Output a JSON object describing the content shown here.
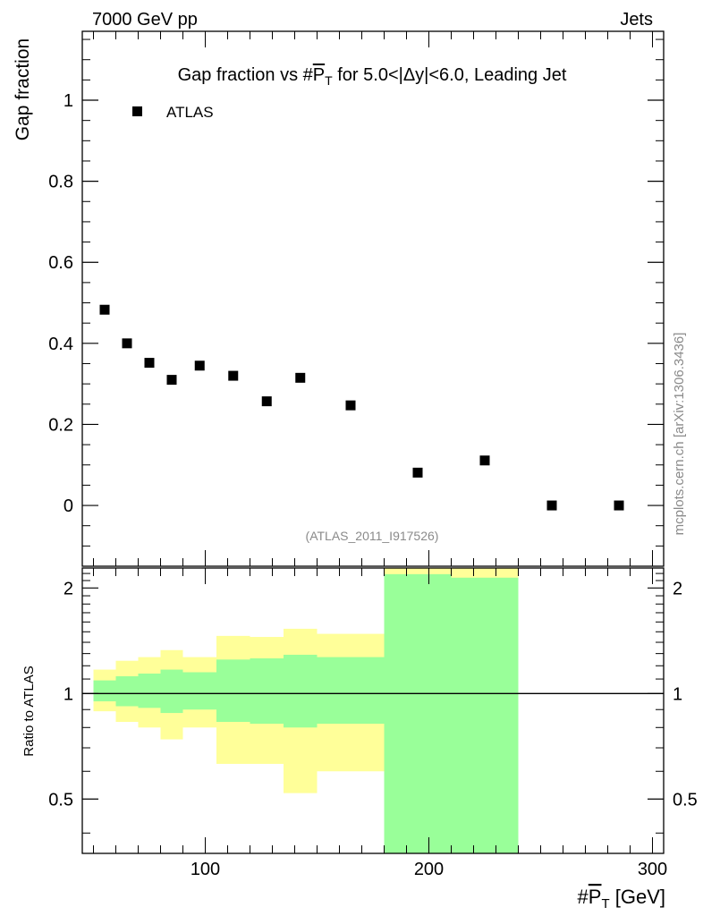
{
  "header": {
    "left": "7000 GeV pp",
    "right": "Jets"
  },
  "side_label": "mcplots.cern.ch [arXiv:1306.3436]",
  "chart_data": [
    {
      "type": "scatter",
      "title_prefix": "Gap fraction vs #",
      "title_var": "P",
      "title_sub": "T",
      "title_suffix": " for 5.0<|Δy|<6.0, Leading Jet",
      "ylabel": "Gap fraction",
      "xlim": [
        45,
        305
      ],
      "ylim": [
        -0.15,
        1.17
      ],
      "yticks": [
        0,
        0.2,
        0.4,
        0.6,
        0.8,
        1
      ],
      "ytick_labels": [
        "0",
        "0.2",
        "0.4",
        "0.6",
        "0.8",
        "1"
      ],
      "legend": "ATLAS",
      "watermark": "(ATLAS_2011_I917526)",
      "series": [
        {
          "name": "ATLAS",
          "x": [
            55,
            65,
            75,
            85,
            97.5,
            112.5,
            127.5,
            142.5,
            165,
            195,
            225,
            255,
            285
          ],
          "y": [
            0.483,
            0.4,
            0.352,
            0.31,
            0.345,
            0.32,
            0.257,
            0.315,
            0.247,
            0.081,
            0.111,
            0.0,
            0.0
          ]
        }
      ]
    },
    {
      "type": "area",
      "ylabel": "Ratio to ATLAS",
      "xlabel_prefix": "#",
      "xlabel_var": "P",
      "xlabel_sub": "T",
      "xlabel_suffix": " [GeV]",
      "xlim": [
        45,
        305
      ],
      "ylim": [
        0.35,
        2.28
      ],
      "yscale": "log",
      "yticks": [
        0.5,
        1,
        2
      ],
      "ytick_labels": [
        "0.5",
        "1",
        "2"
      ],
      "xticks": [
        100,
        200,
        300
      ],
      "xtick_labels": [
        "100",
        "200",
        "300"
      ],
      "reference": 1,
      "bands": {
        "edges": [
          50,
          60,
          70,
          80,
          90,
          105,
          120,
          135,
          150,
          180,
          210,
          240
        ],
        "stat_low": [
          0.95,
          0.92,
          0.91,
          0.88,
          0.9,
          0.83,
          0.82,
          0.8,
          0.82,
          0.01,
          0.01
        ],
        "stat_high": [
          1.09,
          1.12,
          1.14,
          1.17,
          1.15,
          1.25,
          1.26,
          1.29,
          1.27,
          2.19,
          2.14
        ],
        "total_low": [
          0.89,
          0.83,
          0.8,
          0.74,
          0.8,
          0.63,
          0.63,
          0.52,
          0.6,
          0.01,
          0.01
        ],
        "total_high": [
          1.17,
          1.24,
          1.27,
          1.33,
          1.27,
          1.46,
          1.45,
          1.53,
          1.48,
          9.99,
          9.99
        ]
      },
      "colors": {
        "stat": "#99ff99",
        "total": "#ffff99",
        "line": "#000000"
      }
    }
  ]
}
